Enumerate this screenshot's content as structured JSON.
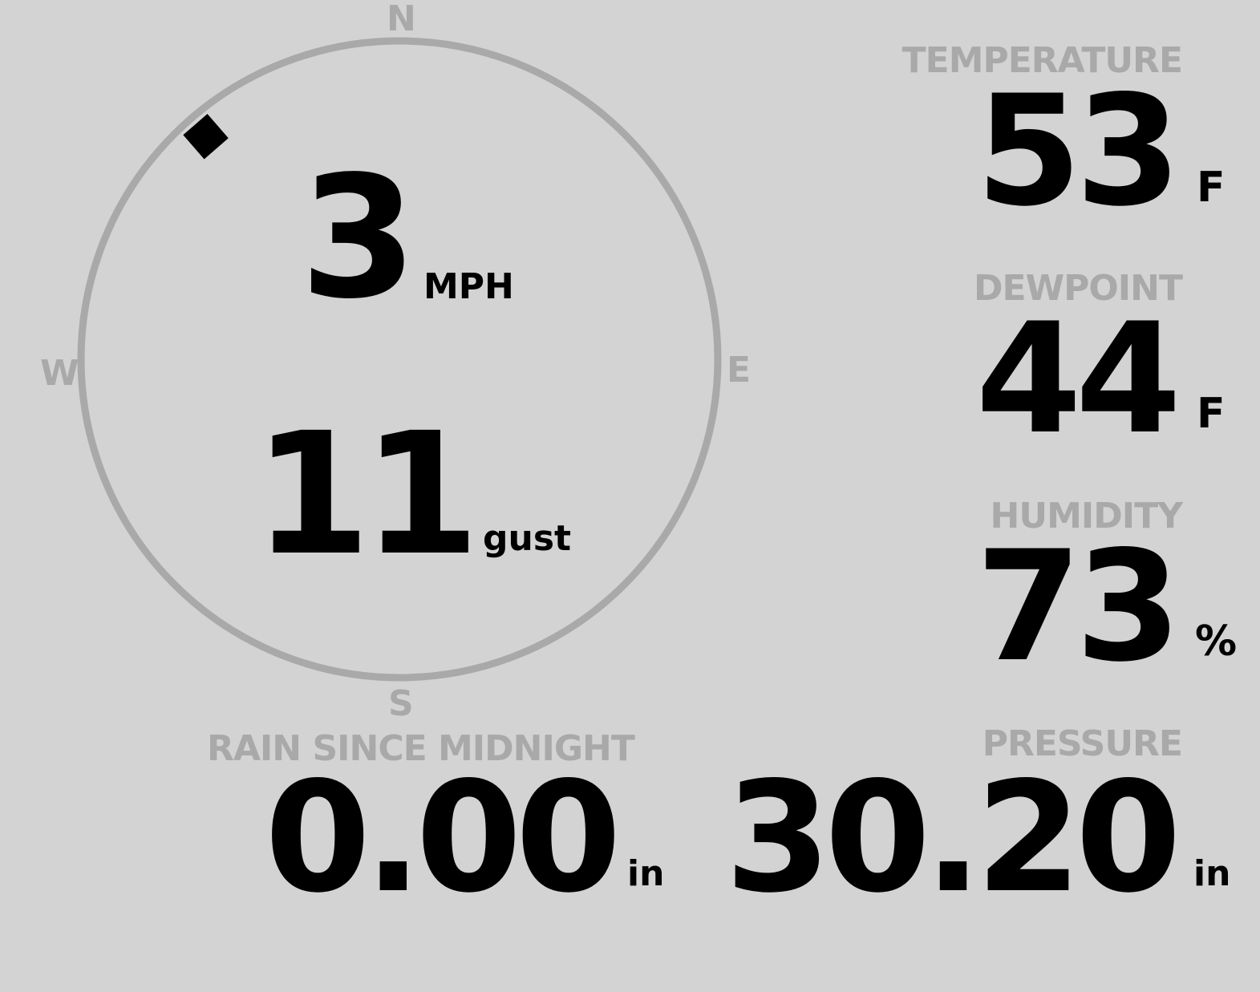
{
  "wind": {
    "compass": {
      "north": "N",
      "east": "E",
      "south": "S",
      "west": "W"
    },
    "speed": "3",
    "speed_unit": "MPH",
    "gust": "11",
    "gust_unit": "gust",
    "direction_deg": 319
  },
  "temperature": {
    "label": "TEMPERATURE",
    "value": "53",
    "unit": "F"
  },
  "dewpoint": {
    "label": "DEWPOINT",
    "value": "44",
    "unit": "F"
  },
  "humidity": {
    "label": "HUMIDITY",
    "value": "73",
    "unit": "%"
  },
  "rain": {
    "label": "RAIN SINCE MIDNIGHT",
    "value": "0.00",
    "unit": "in"
  },
  "pressure": {
    "label": "PRESSURE",
    "value": "30.20",
    "unit": "in"
  },
  "colors": {
    "background": "#d3d3d3",
    "label": "#a9a9a9",
    "value": "#000000"
  }
}
